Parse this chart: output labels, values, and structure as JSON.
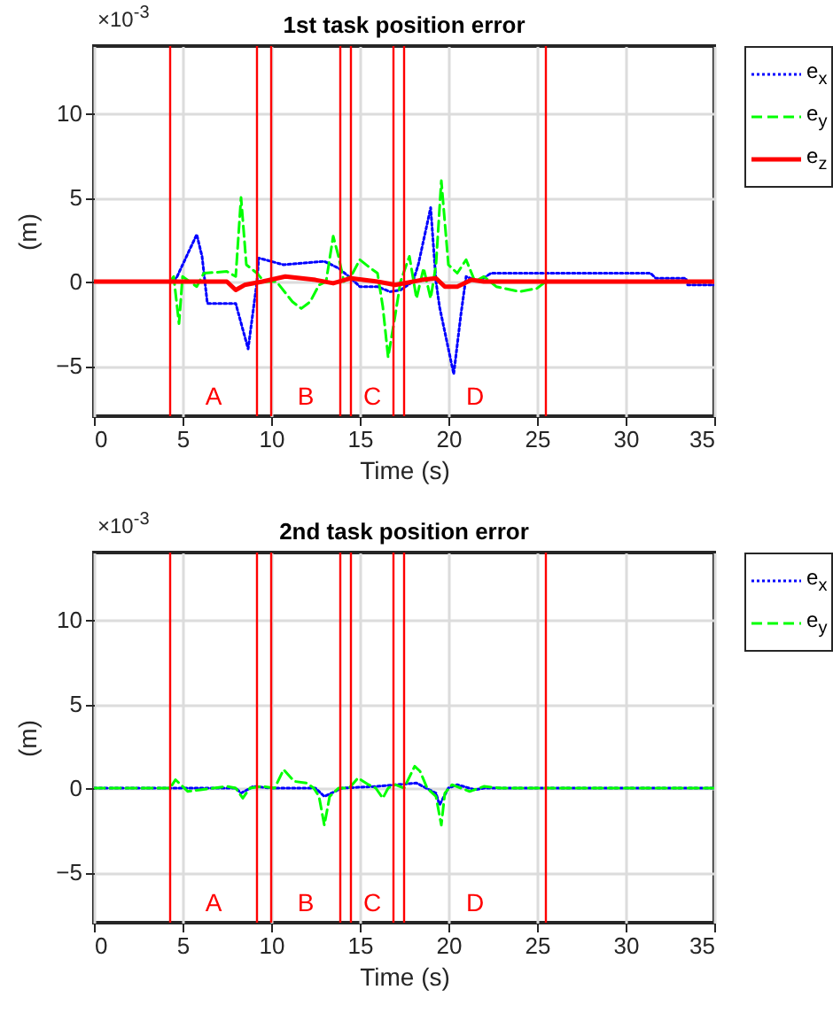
{
  "chart_data": [
    {
      "type": "line",
      "title": "1st task position error",
      "xlabel": "Time (s)",
      "ylabel": "(m)",
      "xlim": [
        0,
        35
      ],
      "xticks": [
        0,
        5,
        10,
        15,
        20,
        25,
        30,
        35
      ],
      "ylim": [
        -8,
        14
      ],
      "yticks": [
        -5,
        0,
        5,
        10
      ],
      "grid": true,
      "legend": "right",
      "annotations": [
        "×10$^{-3}$",
        "A",
        "B",
        "C",
        "D"
      ],
      "ref_lines": [
        {
          "axis": "x",
          "value": 4.3,
          "color": "#ff0000"
        },
        {
          "axis": "x",
          "value": 9.2,
          "color": "#ff0000"
        },
        {
          "axis": "x",
          "value": 10.0,
          "color": "#ff0000"
        },
        {
          "axis": "x",
          "value": 13.9,
          "color": "#ff0000"
        },
        {
          "axis": "x",
          "value": 14.5,
          "color": "#ff0000"
        },
        {
          "axis": "x",
          "value": 16.9,
          "color": "#ff0000"
        },
        {
          "axis": "x",
          "value": 17.5,
          "color": "#ff0000"
        },
        {
          "axis": "x",
          "value": 25.5,
          "color": "#ff0000"
        }
      ],
      "series": [
        {
          "name": "e$_{x}$",
          "color": "#0000ff",
          "line_style": "dotted",
          "x": [
            0,
            4.3,
            4.65,
            5.8,
            6.1,
            6.4,
            8.0,
            8.7,
            9.2,
            9.3,
            10.7,
            13.0,
            13.8,
            14.5,
            15.0,
            16.0,
            16.7,
            17.3,
            18.0,
            18.3,
            19.0,
            19.3,
            19.5,
            20.3,
            20.7,
            21.0,
            21.7,
            22.4,
            31.4,
            31.7,
            33.4,
            33.5,
            35
          ],
          "values": [
            0,
            0,
            0.2,
            2.8,
            1.5,
            -1.3,
            -1.3,
            -4.0,
            0,
            1.4,
            1.0,
            1.2,
            0.8,
            0.2,
            -0.3,
            -0.3,
            -0.6,
            -0.5,
            0,
            1.0,
            4.4,
            0,
            -1.5,
            -5.5,
            -2.0,
            0.3,
            0,
            0.5,
            0.5,
            0.2,
            0.2,
            -0.2,
            -0.2
          ]
        },
        {
          "name": "e$_{y}$",
          "color": "#00ff00",
          "line_style": "dashed",
          "x": [
            0,
            4.3,
            4.5,
            4.8,
            5.0,
            5.8,
            6.2,
            7.5,
            8.0,
            8.3,
            8.6,
            9.2,
            9.6,
            10.3,
            11.2,
            11.7,
            12.2,
            12.7,
            13.1,
            13.5,
            13.8,
            14.1,
            14.6,
            15.0,
            15.6,
            16.0,
            16.3,
            16.6,
            17.0,
            17.3,
            17.8,
            18.2,
            18.6,
            19.0,
            19.3,
            19.6,
            20.0,
            20.5,
            21.0,
            21.5,
            22.0,
            22.7,
            24.0,
            25.0,
            25.5,
            35
          ],
          "values": [
            0,
            0,
            0.3,
            -2.5,
            0.3,
            -0.3,
            0.5,
            0.6,
            0.3,
            5.0,
            1.0,
            0.5,
            0,
            0,
            -1.2,
            -1.6,
            -1.2,
            -0.2,
            0,
            2.7,
            1.5,
            0,
            0.5,
            1.3,
            0.8,
            0.5,
            -1.5,
            -4.5,
            -2.0,
            0,
            1.5,
            -1.0,
            0.8,
            -1.0,
            1.0,
            6.0,
            1.0,
            0.5,
            1.3,
            0,
            0.3,
            -0.3,
            -0.6,
            -0.4,
            0,
            0
          ]
        },
        {
          "name": "e$_{z}$",
          "color": "#ff0000",
          "line_style": "solid",
          "x": [
            0,
            4.3,
            7.5,
            8.0,
            8.5,
            9.5,
            10.8,
            12.5,
            13.5,
            14.5,
            16.0,
            17.0,
            18.5,
            19.3,
            19.8,
            20.5,
            21.3,
            22.0,
            35
          ],
          "values": [
            0,
            0,
            0,
            -0.5,
            -0.2,
            0,
            0.3,
            0.1,
            -0.1,
            0.2,
            0,
            -0.2,
            0.1,
            0.2,
            -0.3,
            -0.3,
            0.1,
            0,
            0
          ]
        }
      ]
    },
    {
      "type": "line",
      "title": "2nd task position error",
      "xlabel": "Time (s)",
      "ylabel": "(m)",
      "xlim": [
        0,
        35
      ],
      "xticks": [
        0,
        5,
        10,
        15,
        20,
        25,
        30,
        35
      ],
      "ylim": [
        -8,
        14
      ],
      "yticks": [
        -5,
        0,
        5,
        10
      ],
      "grid": true,
      "legend": "right",
      "annotations": [
        "×10$^{-3}$",
        "A",
        "B",
        "C",
        "D"
      ],
      "ref_lines": [
        {
          "axis": "x",
          "value": 4.3,
          "color": "#ff0000"
        },
        {
          "axis": "x",
          "value": 9.2,
          "color": "#ff0000"
        },
        {
          "axis": "x",
          "value": 10.0,
          "color": "#ff0000"
        },
        {
          "axis": "x",
          "value": 13.9,
          "color": "#ff0000"
        },
        {
          "axis": "x",
          "value": 14.5,
          "color": "#ff0000"
        },
        {
          "axis": "x",
          "value": 16.9,
          "color": "#ff0000"
        },
        {
          "axis": "x",
          "value": 17.5,
          "color": "#ff0000"
        },
        {
          "axis": "x",
          "value": 25.5,
          "color": "#ff0000"
        }
      ],
      "series": [
        {
          "name": "e$_{x}$",
          "color": "#0000ff",
          "line_style": "dotted",
          "x": [
            0,
            8.0,
            8.3,
            9.0,
            10.0,
            12.5,
            13.0,
            14.0,
            16.0,
            18.2,
            19.3,
            19.5,
            20.0,
            20.5,
            21.5,
            22.0,
            35
          ],
          "values": [
            0,
            0,
            -0.3,
            0.1,
            0,
            0,
            -0.5,
            0,
            0.1,
            0.3,
            -0.3,
            -1.0,
            0,
            0.2,
            -0.1,
            0,
            0
          ]
        },
        {
          "name": "e$_{y}$",
          "color": "#00ff00",
          "line_style": "dashed",
          "x": [
            0,
            4.3,
            4.6,
            5.3,
            6.0,
            7.5,
            8.0,
            8.4,
            8.8,
            9.5,
            10.2,
            10.7,
            11.3,
            12.0,
            12.4,
            12.7,
            13.0,
            13.3,
            13.8,
            14.4,
            14.9,
            15.5,
            15.9,
            16.3,
            16.6,
            17.0,
            17.5,
            18.1,
            18.4,
            18.8,
            19.3,
            19.6,
            19.8,
            20.2,
            21.2,
            22.0,
            23.0,
            35
          ],
          "values": [
            0,
            0,
            0.5,
            -0.2,
            -0.1,
            0.1,
            0,
            -0.6,
            0,
            0.1,
            0,
            1.1,
            0.4,
            0.3,
            0,
            -0.5,
            -2.2,
            -0.5,
            0,
            0,
            0.6,
            0.2,
            0,
            -0.6,
            0,
            0.2,
            0,
            1.3,
            1.0,
            0,
            -0.5,
            -2.2,
            -0.3,
            0.2,
            -0.2,
            0.1,
            0,
            0
          ]
        }
      ]
    }
  ]
}
